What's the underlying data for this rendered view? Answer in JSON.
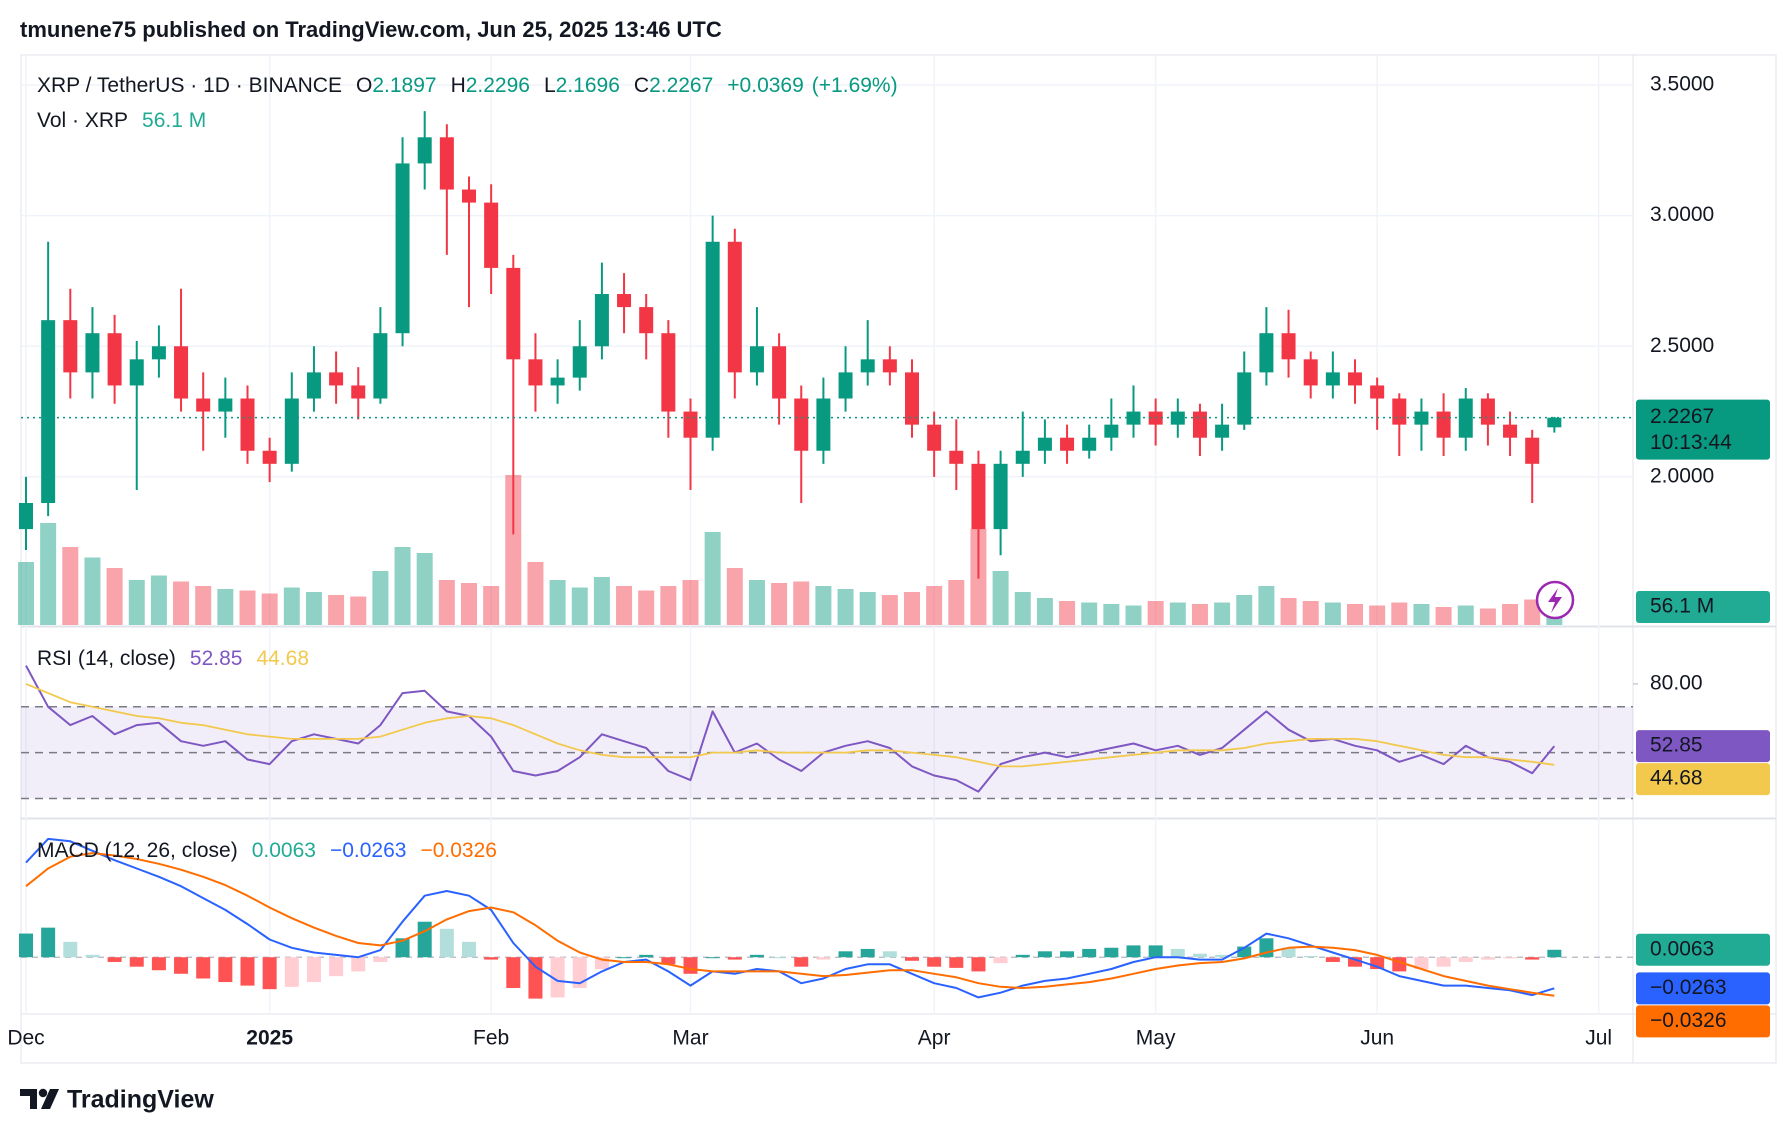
{
  "header": "tmunene75 published on TradingView.com, Jun 25, 2025 13:46 UTC",
  "footer": "TradingView",
  "chart_data": [
    {
      "type": "candlestick",
      "symbol": "XRP / TetherUS · 1D · BINANCE",
      "ohlc_letters": [
        "O",
        "H",
        "L",
        "C"
      ],
      "change": {
        "value": 0.0369,
        "label": "+0.0369"
      },
      "change_pct": {
        "value": 1.69,
        "label": "(+1.69%)"
      },
      "countdown": "10:13:44",
      "categories": [
        "Dec",
        null,
        null,
        null,
        null,
        null,
        null,
        null,
        null,
        null,
        null,
        "2025",
        null,
        null,
        null,
        null,
        null,
        null,
        null,
        null,
        null,
        "Feb",
        null,
        null,
        null,
        null,
        null,
        null,
        null,
        null,
        "Mar",
        null,
        null,
        null,
        null,
        null,
        null,
        null,
        null,
        null,
        null,
        "Apr",
        null,
        null,
        null,
        null,
        null,
        null,
        null,
        null,
        null,
        "May",
        null,
        null,
        null,
        null,
        null,
        null,
        null,
        null,
        null,
        "Jun",
        null,
        null,
        null,
        null,
        null,
        null,
        null,
        null,
        null,
        "Jul"
      ],
      "open": [
        1.8,
        1.9,
        2.6,
        2.4,
        2.55,
        2.35,
        2.45,
        2.5,
        2.3,
        2.25,
        2.3,
        2.1,
        2.05,
        2.3,
        2.4,
        2.35,
        2.3,
        2.55,
        3.2,
        3.3,
        3.1,
        3.05,
        2.8,
        2.45,
        2.35,
        2.38,
        2.5,
        2.7,
        2.65,
        2.55,
        2.25,
        2.15,
        2.9,
        2.4,
        2.5,
        2.3,
        2.1,
        2.3,
        2.4,
        2.45,
        2.4,
        2.2,
        2.1,
        2.05,
        1.8,
        2.05,
        2.1,
        2.15,
        2.1,
        2.15,
        2.2,
        2.25,
        2.2,
        2.25,
        2.15,
        2.2,
        2.4,
        2.55,
        2.45,
        2.35,
        2.4,
        2.35,
        2.3,
        2.2,
        2.25,
        2.15,
        2.3,
        2.2,
        2.15,
        2.1897,
        null,
        null
      ],
      "high": [
        2.0,
        2.9,
        2.72,
        2.65,
        2.62,
        2.52,
        2.58,
        2.72,
        2.4,
        2.38,
        2.35,
        2.15,
        2.4,
        2.5,
        2.48,
        2.42,
        2.65,
        3.3,
        3.4,
        3.35,
        3.15,
        3.12,
        2.85,
        2.55,
        2.45,
        2.6,
        2.82,
        2.78,
        2.7,
        2.6,
        2.3,
        3.0,
        2.95,
        2.65,
        2.55,
        2.35,
        2.38,
        2.5,
        2.6,
        2.5,
        2.45,
        2.25,
        2.22,
        2.1,
        2.1,
        2.25,
        2.22,
        2.2,
        2.2,
        2.3,
        2.35,
        2.3,
        2.3,
        2.28,
        2.28,
        2.48,
        2.65,
        2.64,
        2.48,
        2.48,
        2.45,
        2.38,
        2.32,
        2.3,
        2.32,
        2.34,
        2.32,
        2.25,
        2.18,
        2.2296,
        null,
        null
      ],
      "low": [
        1.72,
        1.85,
        2.3,
        2.3,
        2.28,
        1.95,
        2.38,
        2.25,
        2.1,
        2.15,
        2.05,
        1.98,
        2.02,
        2.25,
        2.28,
        2.22,
        2.28,
        2.5,
        3.1,
        2.85,
        2.65,
        2.7,
        1.78,
        2.25,
        2.28,
        2.33,
        2.45,
        2.55,
        2.45,
        2.15,
        1.95,
        2.1,
        2.3,
        2.35,
        2.2,
        1.9,
        2.05,
        2.25,
        2.35,
        2.35,
        2.15,
        2.0,
        1.95,
        1.61,
        1.7,
        2.0,
        2.05,
        2.05,
        2.07,
        2.1,
        2.15,
        2.12,
        2.15,
        2.08,
        2.1,
        2.18,
        2.35,
        2.38,
        2.3,
        2.3,
        2.28,
        2.18,
        2.08,
        2.1,
        2.08,
        2.1,
        2.12,
        2.08,
        1.9,
        2.1696,
        null,
        null
      ],
      "close": [
        1.9,
        2.6,
        2.4,
        2.55,
        2.35,
        2.45,
        2.5,
        2.3,
        2.25,
        2.3,
        2.1,
        2.05,
        2.3,
        2.4,
        2.35,
        2.3,
        2.55,
        3.2,
        3.3,
        3.1,
        3.05,
        2.8,
        2.45,
        2.35,
        2.38,
        2.5,
        2.7,
        2.65,
        2.55,
        2.25,
        2.15,
        2.9,
        2.4,
        2.5,
        2.3,
        2.1,
        2.3,
        2.4,
        2.45,
        2.4,
        2.2,
        2.1,
        2.05,
        1.8,
        2.05,
        2.1,
        2.15,
        2.1,
        2.15,
        2.2,
        2.25,
        2.2,
        2.25,
        2.15,
        2.2,
        2.4,
        2.55,
        2.45,
        2.35,
        2.4,
        2.35,
        2.3,
        2.2,
        2.25,
        2.15,
        2.3,
        2.2,
        2.15,
        2.05,
        2.2267,
        null,
        null
      ],
      "up_color": "#089981",
      "down_color": "#f23645",
      "ylim": [
        1.433,
        3.615
      ],
      "yticks": [
        {
          "value": 2,
          "label": "2.0000"
        },
        {
          "value": 2.5,
          "label": "2.5000"
        },
        {
          "value": 3,
          "label": "3.0000"
        },
        {
          "value": 3.5,
          "label": "3.5000"
        }
      ],
      "grid": true,
      "volume": {
        "name": "Vol · XRP",
        "values": [
          420,
          680,
          520,
          450,
          380,
          300,
          330,
          290,
          260,
          240,
          230,
          210,
          250,
          220,
          200,
          190,
          360,
          520,
          480,
          300,
          280,
          260,
          1000,
          420,
          300,
          250,
          320,
          260,
          230,
          260,
          300,
          620,
          380,
          300,
          280,
          290,
          260,
          240,
          220,
          200,
          220,
          260,
          300,
          640,
          360,
          220,
          180,
          160,
          150,
          140,
          130,
          160,
          150,
          140,
          150,
          200,
          260,
          180,
          160,
          150,
          140,
          130,
          150,
          140,
          120,
          130,
          110,
          140,
          170,
          56.1,
          null,
          null
        ],
        "last_label": "56.1 M",
        "up_color": "rgba(8,153,129,0.45)",
        "down_color": "rgba(242,54,69,0.45)",
        "label_color": "#22ab94"
      }
    },
    {
      "type": "line",
      "title": "RSI (14, close)",
      "series": [
        {
          "color": "#7e57c2",
          "values": [
            88,
            70,
            62,
            66,
            58,
            62,
            63,
            55,
            53,
            55,
            47,
            45,
            55,
            58,
            56,
            54,
            62,
            76,
            77,
            68,
            66,
            57,
            42,
            40,
            42,
            48,
            58,
            55,
            52,
            42,
            38,
            68,
            50,
            54,
            47,
            42,
            50,
            53,
            55,
            52,
            44,
            40,
            38,
            33,
            45,
            48,
            50,
            48,
            50,
            52,
            54,
            51,
            53,
            49,
            52,
            60,
            68,
            60,
            55,
            56,
            53,
            51,
            46,
            49,
            45,
            53,
            48,
            46,
            41,
            52.85,
            null,
            null
          ]
        },
        {
          "color": "#f2c94c",
          "values": [
            80,
            76,
            72,
            70,
            68,
            66,
            65,
            63,
            62,
            60,
            58,
            57,
            56,
            56,
            56,
            56,
            57,
            60,
            63,
            65,
            66,
            65,
            62,
            58,
            54,
            51,
            49,
            48,
            48,
            48,
            48,
            50,
            50,
            51,
            50,
            50,
            50,
            50,
            51,
            51,
            50,
            49,
            48,
            46,
            44,
            44,
            45,
            46,
            47,
            48,
            49,
            50,
            51,
            51,
            51,
            52,
            54,
            55,
            56,
            56,
            56,
            55,
            53,
            51,
            49,
            48,
            48,
            47,
            46,
            44.68,
            null,
            null
          ]
        }
      ],
      "ylim": [
        21.9,
        104.4
      ],
      "yticks": [
        {
          "value": 80,
          "label": "80.00"
        }
      ],
      "levels": [
        70,
        50,
        30
      ],
      "band_color": "rgba(126,87,194,0.1)"
    },
    {
      "type": "macd",
      "title": "MACD (12, 26, close)",
      "histogram": {
        "values": [
          0.02,
          0.025,
          0.013,
          0.002,
          -0.004,
          -0.008,
          -0.011,
          -0.014,
          -0.018,
          -0.021,
          -0.024,
          -0.027,
          -0.025,
          -0.021,
          -0.016,
          -0.012,
          -0.004,
          0.016,
          0.03,
          0.024,
          0.013,
          -0.002,
          -0.026,
          -0.035,
          -0.034,
          -0.026,
          -0.01,
          0.0,
          0.002,
          -0.006,
          -0.014,
          0.0,
          -0.002,
          0.002,
          0.0,
          -0.008,
          -0.002,
          0.005,
          0.007,
          0.005,
          -0.003,
          -0.008,
          -0.009,
          -0.012,
          -0.005,
          0.002,
          0.005,
          0.005,
          0.007,
          0.008,
          0.01,
          0.01,
          0.007,
          0.003,
          0.002,
          0.009,
          0.016,
          0.008,
          0.001,
          -0.004,
          -0.008,
          -0.01,
          -0.012,
          -0.01,
          -0.008,
          -0.004,
          -0.002,
          -0.001,
          -0.002,
          0.0063,
          null,
          null
        ],
        "colors": [
          "#26a69a",
          "#b2dfdb",
          "#ffcdd2",
          "#ff5252"
        ],
        "label_color": "#22ab94"
      },
      "series": [
        {
          "color": "#2962ff",
          "last_label": "−0.0263",
          "values": [
            0.08,
            0.1,
            0.098,
            0.09,
            0.082,
            0.075,
            0.068,
            0.06,
            0.05,
            0.04,
            0.028,
            0.015,
            0.008,
            0.004,
            0.002,
            0.0,
            0.006,
            0.03,
            0.052,
            0.056,
            0.052,
            0.04,
            0.012,
            -0.008,
            -0.02,
            -0.022,
            -0.012,
            -0.004,
            -0.002,
            -0.012,
            -0.024,
            -0.012,
            -0.014,
            -0.01,
            -0.012,
            -0.022,
            -0.018,
            -0.01,
            -0.006,
            -0.006,
            -0.014,
            -0.022,
            -0.026,
            -0.034,
            -0.03,
            -0.024,
            -0.02,
            -0.018,
            -0.014,
            -0.01,
            -0.004,
            0.0,
            0.0,
            -0.002,
            -0.002,
            0.008,
            0.02,
            0.016,
            0.01,
            0.004,
            -0.002,
            -0.008,
            -0.016,
            -0.02,
            -0.024,
            -0.024,
            -0.026,
            -0.028,
            -0.032,
            -0.0263,
            null,
            null
          ]
        },
        {
          "color": "#ff6d00",
          "last_label": "−0.0326",
          "values": [
            0.06,
            0.075,
            0.085,
            0.088,
            0.086,
            0.083,
            0.079,
            0.074,
            0.068,
            0.061,
            0.052,
            0.042,
            0.033,
            0.025,
            0.018,
            0.012,
            0.01,
            0.014,
            0.022,
            0.032,
            0.039,
            0.042,
            0.038,
            0.027,
            0.014,
            0.004,
            -0.002,
            -0.004,
            -0.004,
            -0.006,
            -0.01,
            -0.012,
            -0.012,
            -0.012,
            -0.012,
            -0.014,
            -0.016,
            -0.015,
            -0.013,
            -0.011,
            -0.011,
            -0.014,
            -0.017,
            -0.022,
            -0.025,
            -0.026,
            -0.025,
            -0.023,
            -0.021,
            -0.018,
            -0.014,
            -0.01,
            -0.007,
            -0.005,
            -0.004,
            -0.001,
            0.004,
            0.008,
            0.009,
            0.008,
            0.006,
            0.002,
            -0.004,
            -0.01,
            -0.016,
            -0.02,
            -0.024,
            -0.027,
            -0.03,
            -0.0326,
            null,
            null
          ]
        }
      ],
      "ylim": [
        -0.048,
        0.116
      ]
    }
  ]
}
